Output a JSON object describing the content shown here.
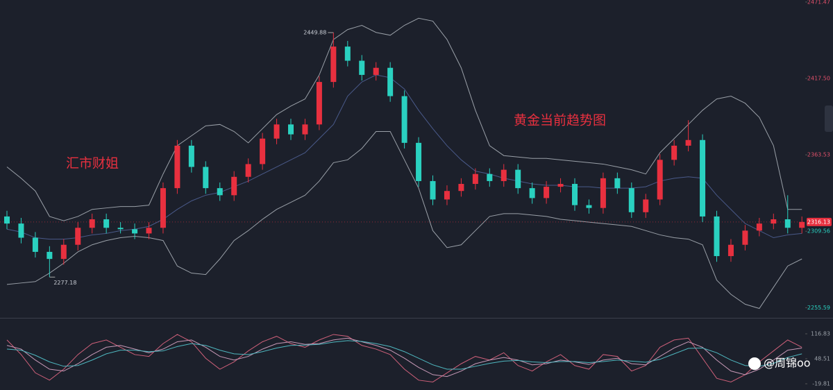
{
  "chart_data": [
    {
      "type": "candlestick",
      "annotations": [
        "汇市财姐",
        "黄金当前趋势图"
      ],
      "up_color": "#e8303f",
      "down_color": "#2ad1c0",
      "open": [
        2320,
        2315,
        2305,
        2295,
        2290,
        2300,
        2312,
        2318,
        2312,
        2311,
        2308,
        2312,
        2340,
        2370,
        2355,
        2340,
        2335,
        2348,
        2357,
        2375,
        2385,
        2378,
        2385,
        2415,
        2440,
        2430,
        2420,
        2425,
        2405,
        2372,
        2345,
        2332,
        2338,
        2343,
        2350,
        2345,
        2353,
        2340,
        2333,
        2341,
        2343,
        2328,
        2326,
        2347,
        2340,
        2323,
        2332,
        2360,
        2370,
        2374,
        2320,
        2292,
        2300,
        2310,
        2315,
        2318,
        2312
      ],
      "high": [
        2324,
        2319,
        2309,
        2299,
        2304,
        2316,
        2322,
        2322,
        2316,
        2315,
        2316,
        2344,
        2374,
        2374,
        2359,
        2344,
        2352,
        2361,
        2379,
        2389,
        2389,
        2389,
        2419,
        2449.88,
        2444,
        2434,
        2429,
        2429,
        2409,
        2376,
        2349,
        2342,
        2347,
        2354,
        2354,
        2357,
        2357,
        2344,
        2345,
        2347,
        2347,
        2332,
        2351,
        2351,
        2344,
        2336,
        2364,
        2374,
        2388,
        2378,
        2324,
        2304,
        2314,
        2319,
        2322,
        2335,
        2320
      ],
      "low": [
        2311,
        2301,
        2291,
        2277.18,
        2286,
        2296,
        2308,
        2308,
        2308,
        2304,
        2304,
        2308,
        2336,
        2351,
        2336,
        2331,
        2331,
        2344,
        2353,
        2371,
        2374,
        2374,
        2381,
        2411,
        2426,
        2416,
        2416,
        2401,
        2368,
        2341,
        2328,
        2328,
        2334,
        2339,
        2341,
        2341,
        2336,
        2329,
        2329,
        2337,
        2324,
        2322,
        2322,
        2336,
        2319,
        2319,
        2328,
        2356,
        2366,
        2316,
        2288,
        2288,
        2296,
        2306,
        2311,
        2308,
        2308
      ],
      "close": [
        2315,
        2305,
        2295,
        2290,
        2300,
        2312,
        2318,
        2312,
        2311,
        2308,
        2312,
        2340,
        2370,
        2355,
        2340,
        2335,
        2348,
        2357,
        2375,
        2385,
        2378,
        2385,
        2415,
        2440,
        2430,
        2420,
        2425,
        2405,
        2372,
        2345,
        2332,
        2338,
        2343,
        2350,
        2345,
        2353,
        2340,
        2333,
        2341,
        2343,
        2328,
        2326,
        2347,
        2340,
        2323,
        2332,
        2360,
        2370,
        2374,
        2320,
        2292,
        2300,
        2310,
        2315,
        2318,
        2312,
        2316.13
      ],
      "series": [
        {
          "color": "#9aa0a8",
          "values": [
            2355,
            2347,
            2338,
            2320,
            2317,
            2320,
            2325,
            2326,
            2327,
            2327,
            2328,
            2350,
            2370,
            2377,
            2384,
            2385,
            2380,
            2372,
            2382,
            2392,
            2398,
            2403,
            2420,
            2445,
            2452,
            2455,
            2450,
            2448,
            2455,
            2460,
            2458,
            2445,
            2425,
            2395,
            2370,
            2363,
            2362,
            2361,
            2361,
            2360,
            2359,
            2358,
            2357,
            2355,
            2353,
            2350,
            2365,
            2375,
            2385,
            2395,
            2403,
            2405,
            2400,
            2390,
            2370,
            2325,
            2325
          ]
        },
        {
          "color": "#4a5a8a",
          "values": [
            2311,
            2309,
            2305,
            2304,
            2304,
            2305,
            2307,
            2308,
            2310,
            2311,
            2313,
            2318,
            2325,
            2331,
            2335,
            2337,
            2341,
            2345,
            2350,
            2355,
            2360,
            2365,
            2375,
            2385,
            2405,
            2415,
            2420,
            2418,
            2410,
            2395,
            2382,
            2370,
            2360,
            2352,
            2350,
            2347,
            2345,
            2343,
            2342,
            2342,
            2341,
            2341,
            2340,
            2340,
            2340,
            2341,
            2345,
            2347,
            2348,
            2347,
            2335,
            2325,
            2315,
            2310,
            2305,
            2307,
            2308
          ]
        },
        {
          "color": "#9aa0a8",
          "values": [
            2272,
            2273,
            2274,
            2280,
            2287,
            2295,
            2300,
            2303,
            2305,
            2306,
            2305,
            2303,
            2285,
            2280,
            2279,
            2290,
            2303,
            2310,
            2318,
            2325,
            2330,
            2335,
            2345,
            2358,
            2360,
            2368,
            2380,
            2380,
            2360,
            2340,
            2310,
            2298,
            2300,
            2310,
            2320,
            2322,
            2322,
            2321,
            2320,
            2318,
            2317,
            2316,
            2315,
            2314,
            2313,
            2310,
            2307,
            2305,
            2304,
            2300,
            2275,
            2265,
            2258,
            2255,
            2270,
            2285,
            2290
          ]
        }
      ],
      "ylim": [
        2248.4,
        2472.9
      ],
      "yticks": [
        2255.59,
        2309.56,
        2363.53,
        {
          "value": 2417.5,
          "label": "2417.50"
        },
        2471.47
      ]
    },
    {
      "type": "line",
      "series": [
        {
          "color": "#d0607a",
          "values": [
            100,
            60,
            10,
            -10,
            20,
            60,
            90,
            100,
            80,
            60,
            55,
            90,
            115,
            95,
            50,
            20,
            40,
            70,
            95,
            110,
            90,
            80,
            100,
            115,
            110,
            85,
            75,
            60,
            20,
            -10,
            -15,
            10,
            35,
            55,
            45,
            65,
            30,
            15,
            40,
            60,
            30,
            20,
            60,
            55,
            15,
            30,
            80,
            100,
            105,
            50,
            -5,
            -15,
            5,
            40,
            70,
            100,
            80
          ]
        },
        {
          "color": "#c99ab8",
          "values": [
            85,
            75,
            45,
            20,
            15,
            35,
            60,
            80,
            85,
            75,
            65,
            75,
            95,
            100,
            80,
            55,
            45,
            55,
            75,
            90,
            95,
            88,
            90,
            100,
            105,
            95,
            85,
            72,
            50,
            25,
            5,
            0,
            15,
            35,
            45,
            52,
            45,
            32,
            35,
            45,
            40,
            33,
            45,
            50,
            35,
            32,
            55,
            78,
            95,
            80,
            45,
            15,
            5,
            20,
            45,
            72,
            78
          ]
        },
        {
          "color": "#4fb8c0",
          "values": [
            75,
            72,
            58,
            40,
            28,
            30,
            45,
            62,
            72,
            72,
            68,
            70,
            82,
            90,
            85,
            72,
            62,
            60,
            68,
            78,
            85,
            86,
            88,
            94,
            98,
            96,
            90,
            82,
            68,
            50,
            32,
            20,
            20,
            28,
            36,
            42,
            44,
            40,
            38,
            41,
            41,
            38,
            41,
            45,
            42,
            39,
            47,
            62,
            77,
            78,
            65,
            45,
            30,
            28,
            36,
            52,
            62
          ]
        }
      ],
      "ylim": [
        -36.9,
        156.7
      ],
      "yticks": [
        116.83,
        48.51,
        -19.81
      ]
    }
  ],
  "watermark": "@周锦oo"
}
